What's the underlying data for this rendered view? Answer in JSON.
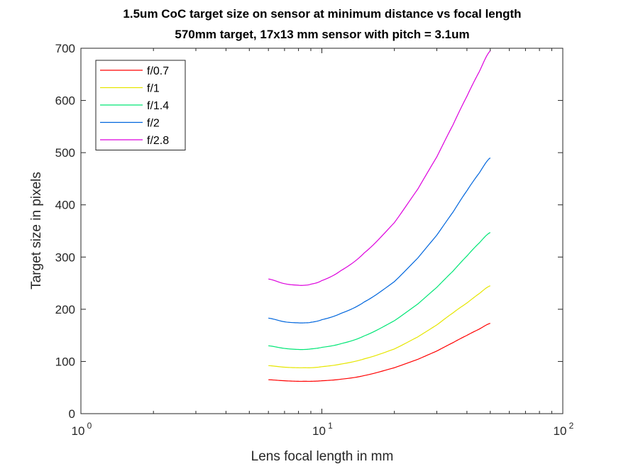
{
  "chart_data": {
    "type": "line",
    "title_line1": "1.5um CoC target size on sensor at minimum distance vs focal length",
    "title_line2": "570mm target, 17x13 mm sensor with pitch = 3.1um",
    "xlabel": "Lens focal length in mm",
    "ylabel": "Target size in pixels",
    "xscale": "log",
    "xlim": [
      1,
      100
    ],
    "ylim": [
      0,
      700
    ],
    "xticks": [
      {
        "value": 1,
        "base": "10",
        "exp": "0"
      },
      {
        "value": 10,
        "base": "10",
        "exp": "1"
      },
      {
        "value": 100,
        "base": "10",
        "exp": "2"
      }
    ],
    "yticks": [
      "0",
      "100",
      "200",
      "300",
      "400",
      "500",
      "600",
      "700"
    ],
    "grid": false,
    "legend_position": "top-left",
    "x": [
      6,
      7,
      8,
      8.5,
      9,
      10,
      12,
      15,
      20,
      25,
      30,
      35,
      40,
      45,
      50
    ],
    "series": [
      {
        "name": "f/0.7",
        "color": "#ff0000",
        "values": [
          65,
          63,
          62,
          62,
          62,
          63,
          66,
          73,
          88,
          104,
          120,
          136,
          150,
          162,
          173
        ]
      },
      {
        "name": "f/1",
        "color": "#e6e600",
        "values": [
          92,
          89,
          88,
          88,
          88,
          90,
          95,
          105,
          124,
          147,
          170,
          193,
          212,
          230,
          245
        ]
      },
      {
        "name": "f/1.4",
        "color": "#00e676",
        "values": [
          130,
          125,
          123,
          123,
          124,
          127,
          134,
          149,
          178,
          210,
          242,
          273,
          302,
          327,
          347
        ]
      },
      {
        "name": "f/2",
        "color": "#0066dd",
        "values": [
          183,
          176,
          174,
          174,
          175,
          180,
          192,
          214,
          253,
          298,
          342,
          386,
          427,
          461,
          490
        ]
      },
      {
        "name": "f/2.8",
        "color": "#dd00dd",
        "values": [
          258,
          249,
          246,
          246,
          248,
          255,
          274,
          308,
          366,
          430,
          492,
          553,
          608,
          655,
          695
        ]
      }
    ]
  }
}
